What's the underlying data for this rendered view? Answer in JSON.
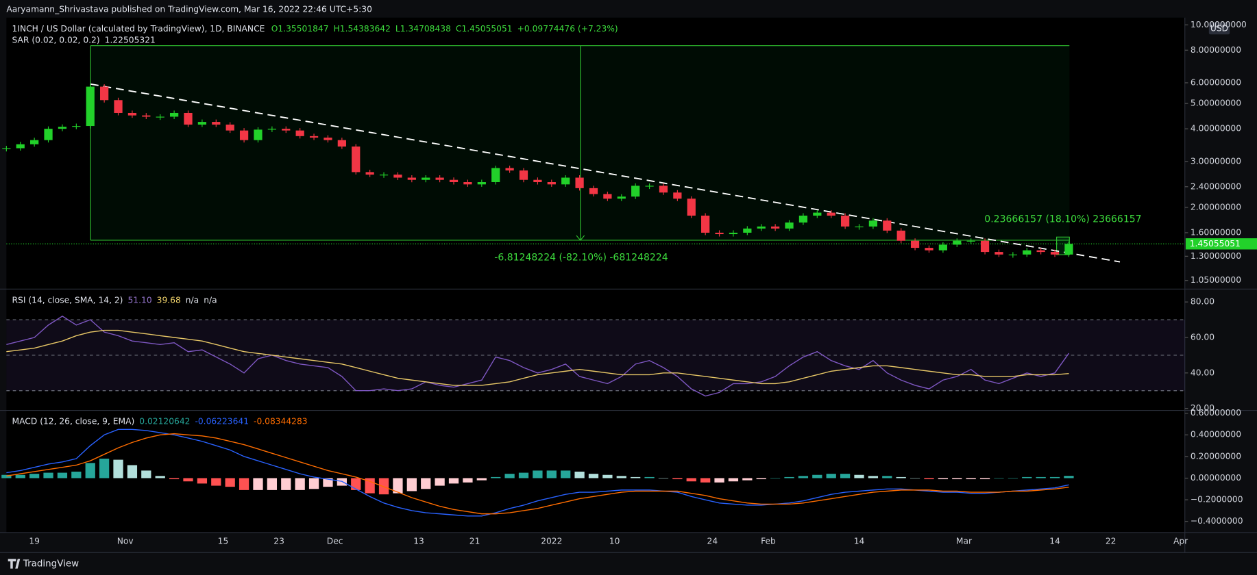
{
  "header": {
    "publisher": "Aaryamann_Shrivastava published on TradingView.com, Mar 16, 2022 22:46 UTC+5:30",
    "brand": "TradingView"
  },
  "chart_data": [
    {
      "type": "candlestick",
      "title": "1INCH / US Dollar (calculated by TradingView), 1D, BINANCE",
      "ohlc_labels": [
        "O1.35501847",
        "H1.54383642",
        "L1.34708438",
        "C1.45055051"
      ],
      "change_label": "+0.09774476 (+7.23%)",
      "indicator": "SAR (0.02, 0.02, 0.2)",
      "indicator_value": "1.22505321",
      "annotations": [
        "-6.81248224 (-82.10%) -681248224",
        "0.23666157 (18.10%) 23666157"
      ],
      "currency": "USD",
      "last_price_label": "1.45055051",
      "up_color": "#22d12a",
      "down_color": "#f23645",
      "log_scale": true,
      "x": [
        15,
        17,
        19,
        21,
        23,
        25,
        27,
        29,
        31,
        33,
        35,
        37,
        39,
        41,
        43,
        45,
        47,
        49,
        51,
        53,
        55,
        57,
        59,
        61,
        63,
        65,
        67,
        69,
        71,
        73,
        75,
        77,
        79,
        81,
        83,
        85,
        87,
        89,
        91,
        93,
        95,
        97,
        99,
        101,
        103,
        105,
        107,
        109,
        111,
        113,
        115,
        117,
        119,
        121,
        123,
        125,
        127,
        129,
        131,
        133,
        135,
        137,
        139,
        141,
        143,
        145,
        147,
        149,
        151,
        153,
        155,
        157,
        159,
        161,
        163,
        165,
        167
      ],
      "values": [
        3.37,
        3.49,
        3.62,
        4.0,
        4.07,
        4.1,
        5.8,
        5.15,
        4.6,
        4.5,
        4.45,
        4.45,
        4.6,
        4.15,
        4.25,
        4.15,
        3.94,
        3.62,
        3.97,
        4.0,
        3.94,
        3.75,
        3.7,
        3.62,
        3.42,
        2.73,
        2.67,
        2.67,
        2.6,
        2.55,
        2.6,
        2.55,
        2.5,
        2.45,
        2.5,
        2.83,
        2.77,
        2.55,
        2.5,
        2.45,
        2.6,
        2.37,
        2.25,
        2.16,
        2.2,
        2.42,
        2.42,
        2.28,
        2.16,
        1.86,
        1.6,
        1.58,
        1.6,
        1.66,
        1.69,
        1.66,
        1.75,
        1.86,
        1.91,
        1.86,
        1.69,
        1.69,
        1.78,
        1.63,
        1.49,
        1.4,
        1.37,
        1.44,
        1.49,
        1.49,
        1.35,
        1.32,
        1.32,
        1.37,
        1.35,
        1.32,
        1.45
      ],
      "xlim": [
        15,
        183.6
      ],
      "xticks": [
        19,
        {
          "value": 32,
          "label": "Nov"
        },
        {
          "value": 46,
          "label": "15"
        },
        {
          "value": 54,
          "label": "23"
        },
        {
          "value": 62,
          "label": "Dec"
        },
        {
          "value": 74,
          "label": "13"
        },
        {
          "value": 82,
          "label": "21"
        },
        {
          "value": 93,
          "label": "2022"
        },
        {
          "value": 102,
          "label": "10"
        },
        {
          "value": 116,
          "label": "24"
        },
        {
          "value": 124,
          "label": "Feb"
        },
        {
          "value": 137,
          "label": "14"
        },
        {
          "value": 152,
          "label": "Mar"
        },
        {
          "value": 165,
          "label": "14"
        },
        {
          "value": 173,
          "label": "22"
        },
        {
          "value": 183,
          "label": "Apr"
        }
      ],
      "ylim": [
        0.98,
        10.66
      ],
      "yticks": [
        {
          "value": 1.05,
          "label": "1.05000000"
        },
        {
          "value": 1.3,
          "label": "1.30000000"
        },
        {
          "value": 1.6,
          "label": "1.60000000"
        },
        {
          "value": 2,
          "label": "2.00000000"
        },
        {
          "value": 2.4,
          "label": "2.40000000"
        },
        {
          "value": 3,
          "label": "3.00000000"
        },
        {
          "value": 4,
          "label": "4.00000000"
        },
        {
          "value": 5,
          "label": "5.00000000"
        },
        {
          "value": 6,
          "label": "6.00000000"
        },
        {
          "value": 8,
          "label": "8.00000000"
        },
        {
          "value": 10,
          "label": "10.00000000"
        }
      ]
    },
    {
      "type": "line",
      "title": "RSI (14, close, SMA, 14, 2)",
      "legend_values": [
        "51.10",
        "39.68",
        "n/a",
        "n/a"
      ],
      "series": [
        {
          "color": "#7e57c2",
          "values": [
            56,
            58,
            60,
            67,
            72,
            67,
            70,
            63,
            61,
            58,
            57,
            56,
            57,
            52,
            53,
            49,
            45,
            40,
            48,
            50,
            47,
            45,
            44,
            43,
            38,
            30,
            30,
            31,
            30,
            31,
            35,
            33,
            32,
            34,
            36,
            49,
            47,
            43,
            40,
            42,
            45,
            38,
            36,
            34,
            38,
            45,
            47,
            43,
            38,
            31,
            27,
            29,
            34,
            34,
            35,
            38,
            44,
            49,
            52,
            47,
            44,
            42,
            47,
            40,
            36,
            33,
            31,
            36,
            38,
            42,
            36,
            34,
            37,
            40,
            38,
            40,
            51.1
          ]
        },
        {
          "color": "#e8c867",
          "values": [
            52,
            53,
            54,
            56,
            58,
            61,
            63,
            64,
            64,
            63,
            62,
            61,
            60,
            59,
            58,
            56,
            54,
            52,
            51,
            50,
            49,
            48,
            47,
            46,
            45,
            43,
            41,
            39,
            37,
            36,
            35,
            34,
            33,
            33,
            33,
            34,
            35,
            37,
            39,
            40,
            41,
            42,
            41,
            40,
            39,
            39,
            39,
            40,
            40,
            39,
            38,
            37,
            36,
            35,
            34,
            34,
            35,
            37,
            39,
            41,
            42,
            43,
            44,
            44,
            43,
            42,
            41,
            40,
            39,
            39,
            38,
            38,
            38,
            39,
            39,
            39,
            39.68
          ]
        }
      ],
      "levels": [
        30,
        50,
        70
      ],
      "ylim": [
        19.1,
        86.8
      ],
      "yticks": [
        {
          "value": 20,
          "label": "20.00"
        },
        {
          "value": 40,
          "label": "40.00"
        },
        {
          "value": 60,
          "label": "60.00"
        },
        {
          "value": 80,
          "label": "80.00"
        }
      ]
    },
    {
      "type": "line",
      "title": "MACD (12, 26, close, 9, EMA)",
      "legend_values": [
        "0.02120642",
        "-0.06223641",
        "-0.08344283"
      ],
      "series": [
        {
          "type": "bar",
          "colors": [
            "#26a69a",
            "#b2dfdb",
            "#ff5252",
            "#ffcdd2"
          ],
          "values": [
            0.03,
            0.03,
            0.04,
            0.05,
            0.05,
            0.06,
            0.14,
            0.18,
            0.17,
            0.12,
            0.07,
            0.02,
            -0.01,
            -0.03,
            -0.05,
            -0.07,
            -0.08,
            -0.11,
            -0.11,
            -0.11,
            -0.11,
            -0.11,
            -0.1,
            -0.08,
            -0.07,
            -0.11,
            -0.14,
            -0.15,
            -0.14,
            -0.12,
            -0.1,
            -0.07,
            -0.05,
            -0.04,
            -0.02,
            0.01,
            0.04,
            0.05,
            0.07,
            0.07,
            0.07,
            0.06,
            0.04,
            0.03,
            0.02,
            0.01,
            0.01,
            0.0,
            -0.01,
            -0.03,
            -0.04,
            -0.04,
            -0.03,
            -0.02,
            -0.01,
            0.0,
            0.01,
            0.02,
            0.03,
            0.04,
            0.04,
            0.03,
            0.02,
            0.02,
            0.01,
            0.0,
            -0.01,
            -0.01,
            -0.01,
            -0.01,
            -0.01,
            0.0,
            0.0,
            0.01,
            0.01,
            0.01,
            0.021
          ]
        },
        {
          "color": "#2962ff",
          "values": [
            0.05,
            0.07,
            0.1,
            0.13,
            0.15,
            0.18,
            0.3,
            0.4,
            0.45,
            0.45,
            0.44,
            0.42,
            0.4,
            0.37,
            0.34,
            0.3,
            0.26,
            0.2,
            0.16,
            0.12,
            0.08,
            0.04,
            0.01,
            -0.01,
            -0.03,
            -0.1,
            -0.17,
            -0.23,
            -0.27,
            -0.3,
            -0.32,
            -0.33,
            -0.34,
            -0.35,
            -0.35,
            -0.32,
            -0.28,
            -0.25,
            -0.21,
            -0.18,
            -0.15,
            -0.13,
            -0.13,
            -0.12,
            -0.11,
            -0.11,
            -0.11,
            -0.12,
            -0.13,
            -0.17,
            -0.2,
            -0.23,
            -0.24,
            -0.25,
            -0.25,
            -0.24,
            -0.23,
            -0.21,
            -0.18,
            -0.15,
            -0.13,
            -0.12,
            -0.11,
            -0.1,
            -0.1,
            -0.11,
            -0.12,
            -0.13,
            -0.13,
            -0.14,
            -0.14,
            -0.13,
            -0.12,
            -0.11,
            -0.1,
            -0.09,
            -0.062
          ]
        },
        {
          "color": "#ff6d00",
          "values": [
            0.02,
            0.04,
            0.06,
            0.08,
            0.1,
            0.12,
            0.16,
            0.22,
            0.28,
            0.33,
            0.37,
            0.4,
            0.41,
            0.4,
            0.39,
            0.37,
            0.34,
            0.31,
            0.27,
            0.23,
            0.19,
            0.15,
            0.11,
            0.07,
            0.04,
            0.01,
            -0.03,
            -0.08,
            -0.13,
            -0.18,
            -0.22,
            -0.26,
            -0.29,
            -0.31,
            -0.33,
            -0.33,
            -0.32,
            -0.3,
            -0.28,
            -0.25,
            -0.22,
            -0.19,
            -0.17,
            -0.15,
            -0.13,
            -0.12,
            -0.12,
            -0.12,
            -0.12,
            -0.14,
            -0.16,
            -0.19,
            -0.21,
            -0.23,
            -0.24,
            -0.24,
            -0.24,
            -0.23,
            -0.21,
            -0.19,
            -0.17,
            -0.15,
            -0.13,
            -0.12,
            -0.11,
            -0.11,
            -0.11,
            -0.12,
            -0.12,
            -0.13,
            -0.13,
            -0.13,
            -0.12,
            -0.12,
            -0.11,
            -0.1,
            -0.083
          ]
        }
      ],
      "ylim": [
        -0.503,
        0.622
      ],
      "yticks": [
        {
          "value": -0.4,
          "label": "−0.4000000"
        },
        {
          "value": -0.2,
          "label": "−0.2000000"
        },
        {
          "value": 0,
          "label": "0.00000000"
        },
        {
          "value": 0.2,
          "label": "0.20000000"
        },
        {
          "value": 0.4,
          "label": "0.40000000"
        },
        {
          "value": 0.6,
          "label": "0.60000000"
        }
      ]
    }
  ]
}
